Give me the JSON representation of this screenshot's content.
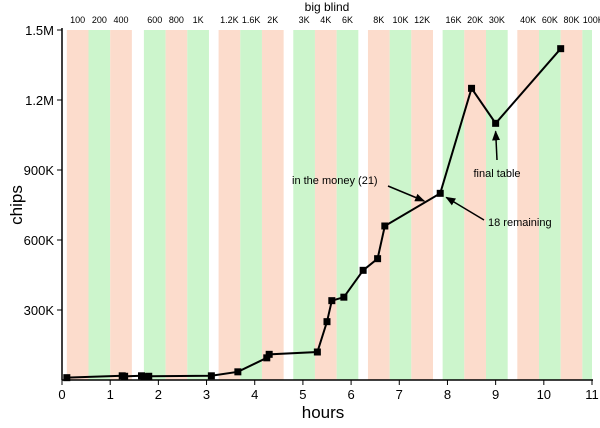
{
  "chart_data": {
    "type": "line",
    "title": "big blind",
    "xlabel": "hours",
    "ylabel": "chips",
    "xlim": [
      0,
      11
    ],
    "ylim": [
      0,
      1500000
    ],
    "x_ticks": [
      0,
      1,
      2,
      3,
      4,
      5,
      6,
      7,
      8,
      9,
      10,
      11
    ],
    "x_tick_labels": [
      "0",
      "1",
      "2",
      "3",
      "4",
      "5",
      "6",
      "7",
      "8",
      "9",
      "10",
      "11"
    ],
    "y_ticks": [
      300000,
      600000,
      900000,
      1200000,
      1500000
    ],
    "y_tick_labels": [
      "300K",
      "600K",
      "900K",
      "1.2M",
      "1.5M"
    ],
    "series": [
      {
        "x": [
          0.1,
          1.25,
          1.3,
          1.65,
          1.7,
          1.8,
          3.1,
          3.65,
          4.25,
          4.3,
          5.3,
          5.5,
          5.6,
          5.85,
          6.25,
          6.55,
          6.7,
          7.85,
          8.5,
          9.0,
          10.35
        ],
        "y": [
          10000,
          18000,
          16000,
          18000,
          14000,
          16000,
          18000,
          35000,
          95000,
          110000,
          120000,
          250000,
          340000,
          355000,
          470000,
          520000,
          660000,
          800000,
          1250000,
          1100000,
          1420000
        ]
      }
    ],
    "bands": [
      {
        "x0": 0.1,
        "x1": 0.55,
        "color": "#fcdccc",
        "label": "100"
      },
      {
        "x0": 0.55,
        "x1": 1.0,
        "color": "#ccf5cc",
        "label": "200"
      },
      {
        "x0": 1.0,
        "x1": 1.45,
        "color": "#fcdccc",
        "label": "400"
      },
      {
        "x0": 1.7,
        "x1": 2.15,
        "color": "#ccf5cc",
        "label": "600"
      },
      {
        "x0": 2.15,
        "x1": 2.6,
        "color": "#fcdccc",
        "label": "800"
      },
      {
        "x0": 2.6,
        "x1": 3.05,
        "color": "#ccf5cc",
        "label": "1K"
      },
      {
        "x0": 3.25,
        "x1": 3.7,
        "color": "#fcdccc",
        "label": "1.2K"
      },
      {
        "x0": 3.7,
        "x1": 4.15,
        "color": "#ccf5cc",
        "label": "1.6K"
      },
      {
        "x0": 4.15,
        "x1": 4.6,
        "color": "#fcdccc",
        "label": "2K"
      },
      {
        "x0": 4.8,
        "x1": 5.25,
        "color": "#ccf5cc",
        "label": "3K"
      },
      {
        "x0": 5.25,
        "x1": 5.7,
        "color": "#fcdccc",
        "label": "4K"
      },
      {
        "x0": 5.7,
        "x1": 6.15,
        "color": "#ccf5cc",
        "label": "6K"
      },
      {
        "x0": 6.35,
        "x1": 6.8,
        "color": "#fcdccc",
        "label": "8K"
      },
      {
        "x0": 6.8,
        "x1": 7.25,
        "color": "#ccf5cc",
        "label": "10K"
      },
      {
        "x0": 7.25,
        "x1": 7.7,
        "color": "#fcdccc",
        "label": "12K"
      },
      {
        "x0": 7.9,
        "x1": 8.35,
        "color": "#ccf5cc",
        "label": "16K"
      },
      {
        "x0": 8.35,
        "x1": 8.8,
        "color": "#fcdccc",
        "label": "20K"
      },
      {
        "x0": 8.8,
        "x1": 9.25,
        "color": "#ccf5cc",
        "label": "30K"
      },
      {
        "x0": 9.45,
        "x1": 9.9,
        "color": "#fcdccc",
        "label": "40K"
      },
      {
        "x0": 9.9,
        "x1": 10.35,
        "color": "#ccf5cc",
        "label": "60K"
      },
      {
        "x0": 10.35,
        "x1": 10.8,
        "color": "#fcdccc",
        "label": "80K"
      },
      {
        "x0": 10.8,
        "x1": 11.25,
        "color": "#ccf5cc",
        "label": "100K"
      }
    ],
    "annotations": [
      {
        "text": "in the money (21)",
        "arrow_to": [
          7.6,
          780000
        ]
      },
      {
        "text": "18 remaining",
        "arrow_to": [
          7.85,
          800000
        ]
      },
      {
        "text": "final table",
        "arrow_to": [
          9.0,
          1100000
        ]
      }
    ],
    "grid": false,
    "legend": "none"
  }
}
